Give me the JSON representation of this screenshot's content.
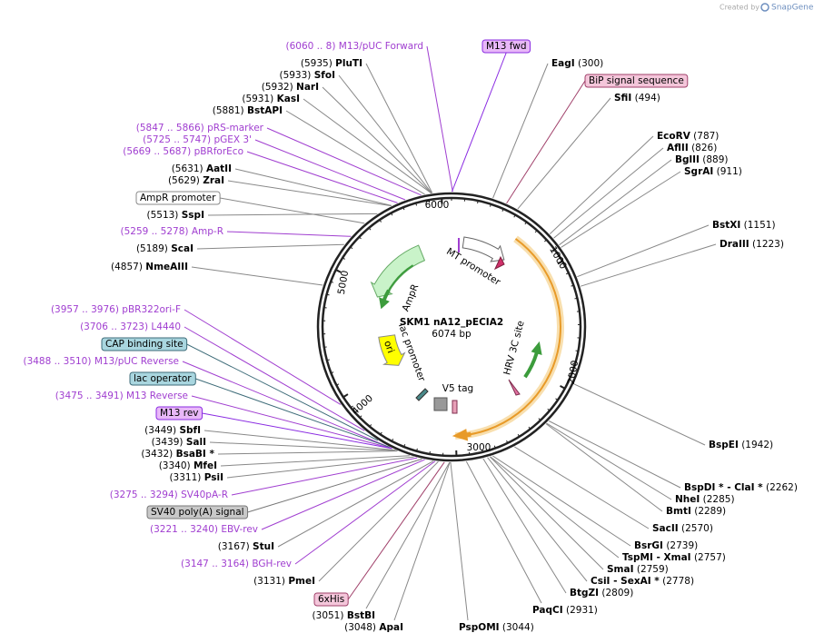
{
  "header": {
    "credit": "Created by",
    "brand": "SnapGene"
  },
  "plasmid": {
    "name": "SKM1 nA12_pECIA2",
    "length": "6074 bp",
    "ticks": [
      "1000",
      "2000",
      "3000",
      "4000",
      "5000",
      "6000"
    ]
  },
  "map_features": [
    "MT promoter",
    "AmpR",
    "ori",
    "lac promoter",
    "V5 tag",
    "HRV 3C site"
  ],
  "features": [
    "M13 fwd",
    "BiP signal sequence",
    "AmpR promoter",
    "CAP binding site",
    "lac operator",
    "M13 rev",
    "SV40 poly(A) signal",
    "6xHis"
  ],
  "primers": [
    {
      "range": "(6060 .. 8)",
      "name": "M13/pUC Forward"
    },
    {
      "range": "(5847 .. 5866)",
      "name": "pRS-marker"
    },
    {
      "range": "(5725 .. 5747)",
      "name": "pGEX 3'"
    },
    {
      "range": "(5669 .. 5687)",
      "name": "pBRforEco"
    },
    {
      "range": "(5259 .. 5278)",
      "name": "Amp-R"
    },
    {
      "range": "(3957 .. 3976)",
      "name": "pBR322ori-F"
    },
    {
      "range": "(3706 .. 3723)",
      "name": "L4440"
    },
    {
      "range": "(3488 .. 3510)",
      "name": "M13/pUC Reverse"
    },
    {
      "range": "(3475 .. 3491)",
      "name": "M13 Reverse"
    },
    {
      "range": "(3275 .. 3294)",
      "name": "SV40pA-R"
    },
    {
      "range": "(3221 .. 3240)",
      "name": "EBV-rev"
    },
    {
      "range": "(3147 .. 3164)",
      "name": "BGH-rev"
    }
  ],
  "enzymes": [
    {
      "pos": "(5935)",
      "name": "PluTI"
    },
    {
      "pos": "(5933)",
      "name": "SfoI"
    },
    {
      "pos": "(5932)",
      "name": "NarI"
    },
    {
      "pos": "(5931)",
      "name": "KasI"
    },
    {
      "pos": "(5881)",
      "name": "BstAPI"
    },
    {
      "pos": "(5631)",
      "name": "AatII"
    },
    {
      "pos": "(5629)",
      "name": "ZraI"
    },
    {
      "pos": "(5513)",
      "name": "SspI"
    },
    {
      "pos": "(5189)",
      "name": "ScaI"
    },
    {
      "pos": "(4857)",
      "name": "NmeAIII"
    },
    {
      "pos": "(3449)",
      "name": "SbfI"
    },
    {
      "pos": "(3439)",
      "name": "SalI"
    },
    {
      "pos": "(3432)",
      "name": "BsaBI *"
    },
    {
      "pos": "(3340)",
      "name": "MfeI"
    },
    {
      "pos": "(3311)",
      "name": "PsiI"
    },
    {
      "pos": "(3167)",
      "name": "StuI"
    },
    {
      "pos": "(3131)",
      "name": "PmeI"
    },
    {
      "pos": "(3051)",
      "name": "BstBI"
    },
    {
      "pos": "(3048)",
      "name": "ApaI"
    },
    {
      "pos": "(3044)",
      "name": "PspOMI"
    },
    {
      "pos": "(300)",
      "name": "EagI"
    },
    {
      "pos": "(494)",
      "name": "SfiI"
    },
    {
      "pos": "(787)",
      "name": "EcoRV"
    },
    {
      "pos": "(826)",
      "name": "AflII"
    },
    {
      "pos": "(889)",
      "name": "BglII"
    },
    {
      "pos": "(911)",
      "name": "SgrAI"
    },
    {
      "pos": "(1151)",
      "name": "BstXI"
    },
    {
      "pos": "(1223)",
      "name": "DraIII"
    },
    {
      "pos": "(1942)",
      "name": "BspEI"
    },
    {
      "pos": "(2262)",
      "name": "BspDI *  -  ClaI *"
    },
    {
      "pos": "(2285)",
      "name": "NheI"
    },
    {
      "pos": "(2289)",
      "name": "BmtI"
    },
    {
      "pos": "(2570)",
      "name": "SacII"
    },
    {
      "pos": "(2739)",
      "name": "BsrGI"
    },
    {
      "pos": "(2757)",
      "name": "TspMI  -  XmaI"
    },
    {
      "pos": "(2759)",
      "name": "SmaI"
    },
    {
      "pos": "(2778)",
      "name": "CsiI  -  SexAI *"
    },
    {
      "pos": "(2809)",
      "name": "BtgZI"
    },
    {
      "pos": "(2931)",
      "name": "PaqCI"
    }
  ]
}
